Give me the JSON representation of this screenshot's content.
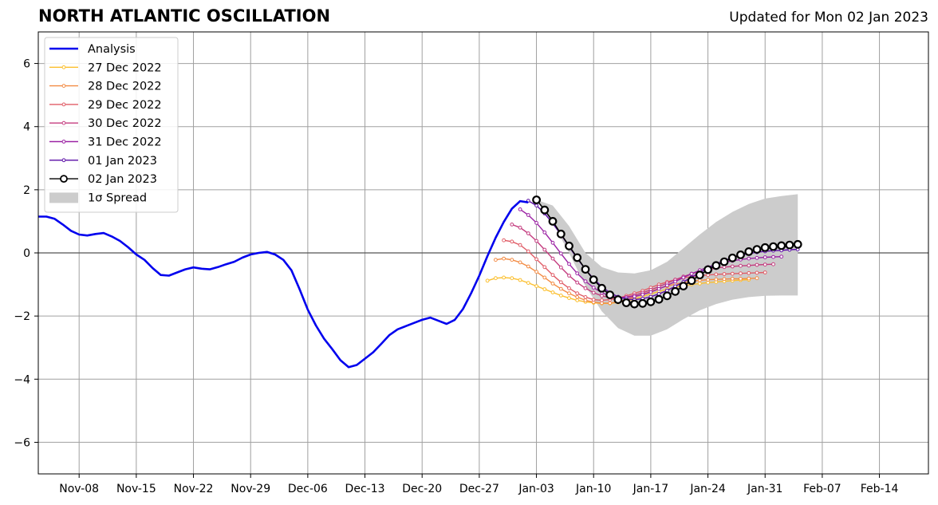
{
  "chart_data": {
    "type": "line",
    "title": "NORTH ATLANTIC OSCILLATION",
    "subtitle": "Updated for Mon 02 Jan 2023",
    "xlabel": "",
    "ylabel": "",
    "xlim": [
      "2022-11-03",
      "2023-02-20"
    ],
    "ylim": [
      -7,
      7
    ],
    "grid": true,
    "legend_position": "top-left",
    "x_ticks": [
      "2022-11-08",
      "2022-11-15",
      "2022-11-22",
      "2022-11-29",
      "2022-12-06",
      "2022-12-13",
      "2022-12-20",
      "2022-12-27",
      "2023-01-03",
      "2023-01-10",
      "2023-01-17",
      "2023-01-24",
      "2023-01-31",
      "2023-02-07",
      "2023-02-14"
    ],
    "x_tick_labels": [
      "Nov-08",
      "Nov-15",
      "Nov-22",
      "Nov-29",
      "Dec-06",
      "Dec-13",
      "Dec-20",
      "Dec-27",
      "Jan-03",
      "Jan-10",
      "Jan-17",
      "Jan-24",
      "Jan-31",
      "Feb-07",
      "Feb-14"
    ],
    "y_ticks": [
      -6,
      -4,
      -2,
      0,
      2,
      4,
      6
    ],
    "y_tick_labels": [
      "−6",
      "−4",
      "−2",
      "0",
      "2",
      "4",
      "6"
    ],
    "series": [
      {
        "name": "Analysis",
        "color": "#0000ee",
        "marker": "none",
        "start": "2022-11-03",
        "values": [
          1.15,
          1.15,
          1.08,
          0.9,
          0.7,
          0.58,
          0.55,
          0.6,
          0.63,
          0.52,
          0.38,
          0.18,
          -0.05,
          -0.22,
          -0.48,
          -0.7,
          -0.72,
          -0.62,
          -0.52,
          -0.46,
          -0.5,
          -0.52,
          -0.45,
          -0.36,
          -0.28,
          -0.15,
          -0.05,
          0.0,
          0.03,
          -0.05,
          -0.22,
          -0.55,
          -1.15,
          -1.8,
          -2.3,
          -2.72,
          -3.05,
          -3.4,
          -3.62,
          -3.55,
          -3.35,
          -3.15,
          -2.88,
          -2.6,
          -2.42,
          -2.32,
          -2.22,
          -2.12,
          -2.05,
          -2.15,
          -2.25,
          -2.12,
          -1.78,
          -1.28,
          -0.72,
          -0.1,
          0.48,
          0.98,
          1.4,
          1.64,
          1.6
        ]
      },
      {
        "name": "27 Dec 2022",
        "color": "#fbbf2d",
        "marker": "dot",
        "start": "2022-12-28",
        "values": [
          -0.88,
          -0.8,
          -0.78,
          -0.8,
          -0.86,
          -0.95,
          -1.05,
          -1.15,
          -1.25,
          -1.35,
          -1.43,
          -1.5,
          -1.55,
          -1.58,
          -1.6,
          -1.6,
          -1.57,
          -1.52,
          -1.46,
          -1.38,
          -1.3,
          -1.22,
          -1.15,
          -1.09,
          -1.04,
          -1.0,
          -0.97,
          -0.94,
          -0.92,
          -0.9,
          -0.88,
          -0.86,
          -0.85
        ]
      },
      {
        "name": "28 Dec 2022",
        "color": "#f38b43",
        "marker": "dot",
        "start": "2022-12-29",
        "values": [
          -0.22,
          -0.18,
          -0.22,
          -0.3,
          -0.43,
          -0.6,
          -0.78,
          -0.97,
          -1.14,
          -1.28,
          -1.4,
          -1.5,
          -1.56,
          -1.59,
          -1.59,
          -1.55,
          -1.48,
          -1.4,
          -1.31,
          -1.22,
          -1.13,
          -1.05,
          -0.99,
          -0.94,
          -0.9,
          -0.87,
          -0.85,
          -0.84,
          -0.83,
          -0.82,
          -0.82,
          -0.81,
          -0.8
        ]
      },
      {
        "name": "29 Dec 2022",
        "color": "#e05c66",
        "marker": "dot",
        "start": "2022-12-30",
        "values": [
          0.4,
          0.36,
          0.25,
          0.05,
          -0.2,
          -0.45,
          -0.7,
          -0.93,
          -1.12,
          -1.28,
          -1.4,
          -1.48,
          -1.5,
          -1.48,
          -1.43,
          -1.36,
          -1.28,
          -1.2,
          -1.1,
          -1.0,
          -0.92,
          -0.85,
          -0.79,
          -0.75,
          -0.72,
          -0.7,
          -0.68,
          -0.67,
          -0.66,
          -0.65,
          -0.64,
          -0.63,
          -0.62
        ]
      },
      {
        "name": "30 Dec 2022",
        "color": "#c43c7f",
        "marker": "dot",
        "start": "2022-12-31",
        "values": [
          0.9,
          0.8,
          0.62,
          0.38,
          0.1,
          -0.18,
          -0.46,
          -0.72,
          -0.94,
          -1.12,
          -1.26,
          -1.36,
          -1.42,
          -1.43,
          -1.4,
          -1.34,
          -1.26,
          -1.17,
          -1.07,
          -0.96,
          -0.85,
          -0.75,
          -0.66,
          -0.59,
          -0.53,
          -0.48,
          -0.45,
          -0.43,
          -0.41,
          -0.4,
          -0.38,
          -0.37,
          -0.36
        ]
      },
      {
        "name": "31 Dec 2022",
        "color": "#9b22a4",
        "marker": "dot",
        "start": "2023-01-01",
        "values": [
          1.38,
          1.2,
          0.95,
          0.65,
          0.32,
          -0.02,
          -0.35,
          -0.65,
          -0.9,
          -1.1,
          -1.26,
          -1.36,
          -1.41,
          -1.41,
          -1.38,
          -1.32,
          -1.24,
          -1.14,
          -1.03,
          -0.91,
          -0.78,
          -0.66,
          -0.55,
          -0.45,
          -0.37,
          -0.3,
          -0.25,
          -0.21,
          -0.18,
          -0.16,
          -0.14,
          -0.13,
          -0.12
        ]
      },
      {
        "name": "01 Jan 2023",
        "color": "#5a0ca5",
        "marker": "dot",
        "start": "2023-01-02",
        "values": [
          1.65,
          1.5,
          1.25,
          0.93,
          0.58,
          0.2,
          -0.18,
          -0.52,
          -0.82,
          -1.07,
          -1.26,
          -1.39,
          -1.46,
          -1.48,
          -1.45,
          -1.39,
          -1.3,
          -1.19,
          -1.06,
          -0.92,
          -0.77,
          -0.62,
          -0.48,
          -0.35,
          -0.24,
          -0.15,
          -0.08,
          -0.02,
          0.02,
          0.05,
          0.07,
          0.08,
          0.1,
          0.11
        ]
      },
      {
        "name": "02 Jan 2023",
        "color": "#000000",
        "marker": "circle",
        "start": "2023-01-03",
        "values": [
          1.68,
          1.36,
          1.0,
          0.6,
          0.22,
          -0.15,
          -0.52,
          -0.85,
          -1.12,
          -1.33,
          -1.48,
          -1.58,
          -1.62,
          -1.6,
          -1.55,
          -1.47,
          -1.36,
          -1.22,
          -1.05,
          -0.88,
          -0.7,
          -0.53,
          -0.4,
          -0.28,
          -0.16,
          -0.06,
          0.04,
          0.11,
          0.17,
          0.2,
          0.23,
          0.25,
          0.27
        ]
      }
    ],
    "spread": {
      "name": "1σ Spread",
      "color": "#cccccc",
      "x": [
        "2023-01-03",
        "2023-01-05",
        "2023-01-07",
        "2023-01-09",
        "2023-01-11",
        "2023-01-13",
        "2023-01-15",
        "2023-01-17",
        "2023-01-19",
        "2023-01-21",
        "2023-01-23",
        "2023-01-25",
        "2023-01-27",
        "2023-01-29",
        "2023-01-31",
        "2023-02-02",
        "2023-02-04"
      ],
      "lower": [
        1.68,
        0.95,
        0.0,
        -1.05,
        -1.85,
        -2.38,
        -2.62,
        -2.62,
        -2.42,
        -2.1,
        -1.82,
        -1.62,
        -1.48,
        -1.4,
        -1.36,
        -1.35,
        -1.35
      ],
      "upper": [
        1.68,
        1.5,
        0.85,
        0.0,
        -0.45,
        -0.62,
        -0.65,
        -0.55,
        -0.28,
        0.15,
        0.58,
        0.98,
        1.3,
        1.55,
        1.72,
        1.8,
        1.86
      ]
    }
  }
}
